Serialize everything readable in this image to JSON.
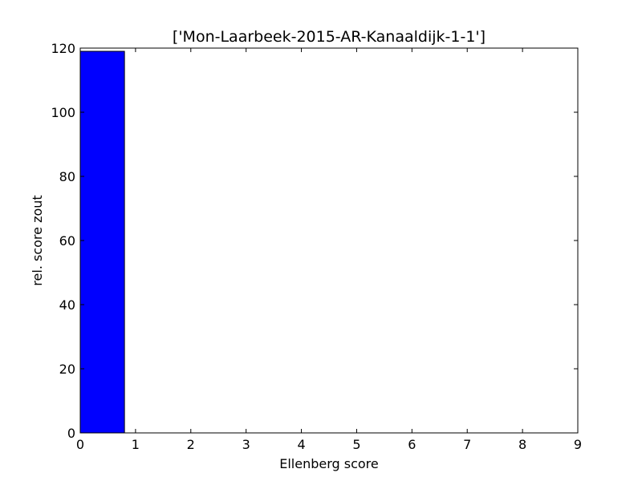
{
  "chart_data": {
    "type": "bar",
    "title": "['Mon-Laarbeek-2015-AR-Kanaaldijk-1-1']",
    "xlabel": "Ellenberg score",
    "ylabel": "rel. score  zout",
    "xlim": [
      0,
      9
    ],
    "ylim": [
      0,
      120
    ],
    "xticks": [
      "0",
      "1",
      "2",
      "3",
      "4",
      "5",
      "6",
      "7",
      "8",
      "9"
    ],
    "yticks": [
      "0",
      "20",
      "40",
      "60",
      "80",
      "100",
      "120"
    ],
    "bar_width": 0.8,
    "x": [
      0,
      1,
      2,
      3,
      4,
      5,
      6,
      7,
      8
    ],
    "values": [
      119,
      0,
      0,
      0,
      0,
      0,
      0,
      0,
      0
    ],
    "grid": false,
    "legend": "none",
    "bar_color": "#0000ff",
    "edge_color": "#000000"
  }
}
